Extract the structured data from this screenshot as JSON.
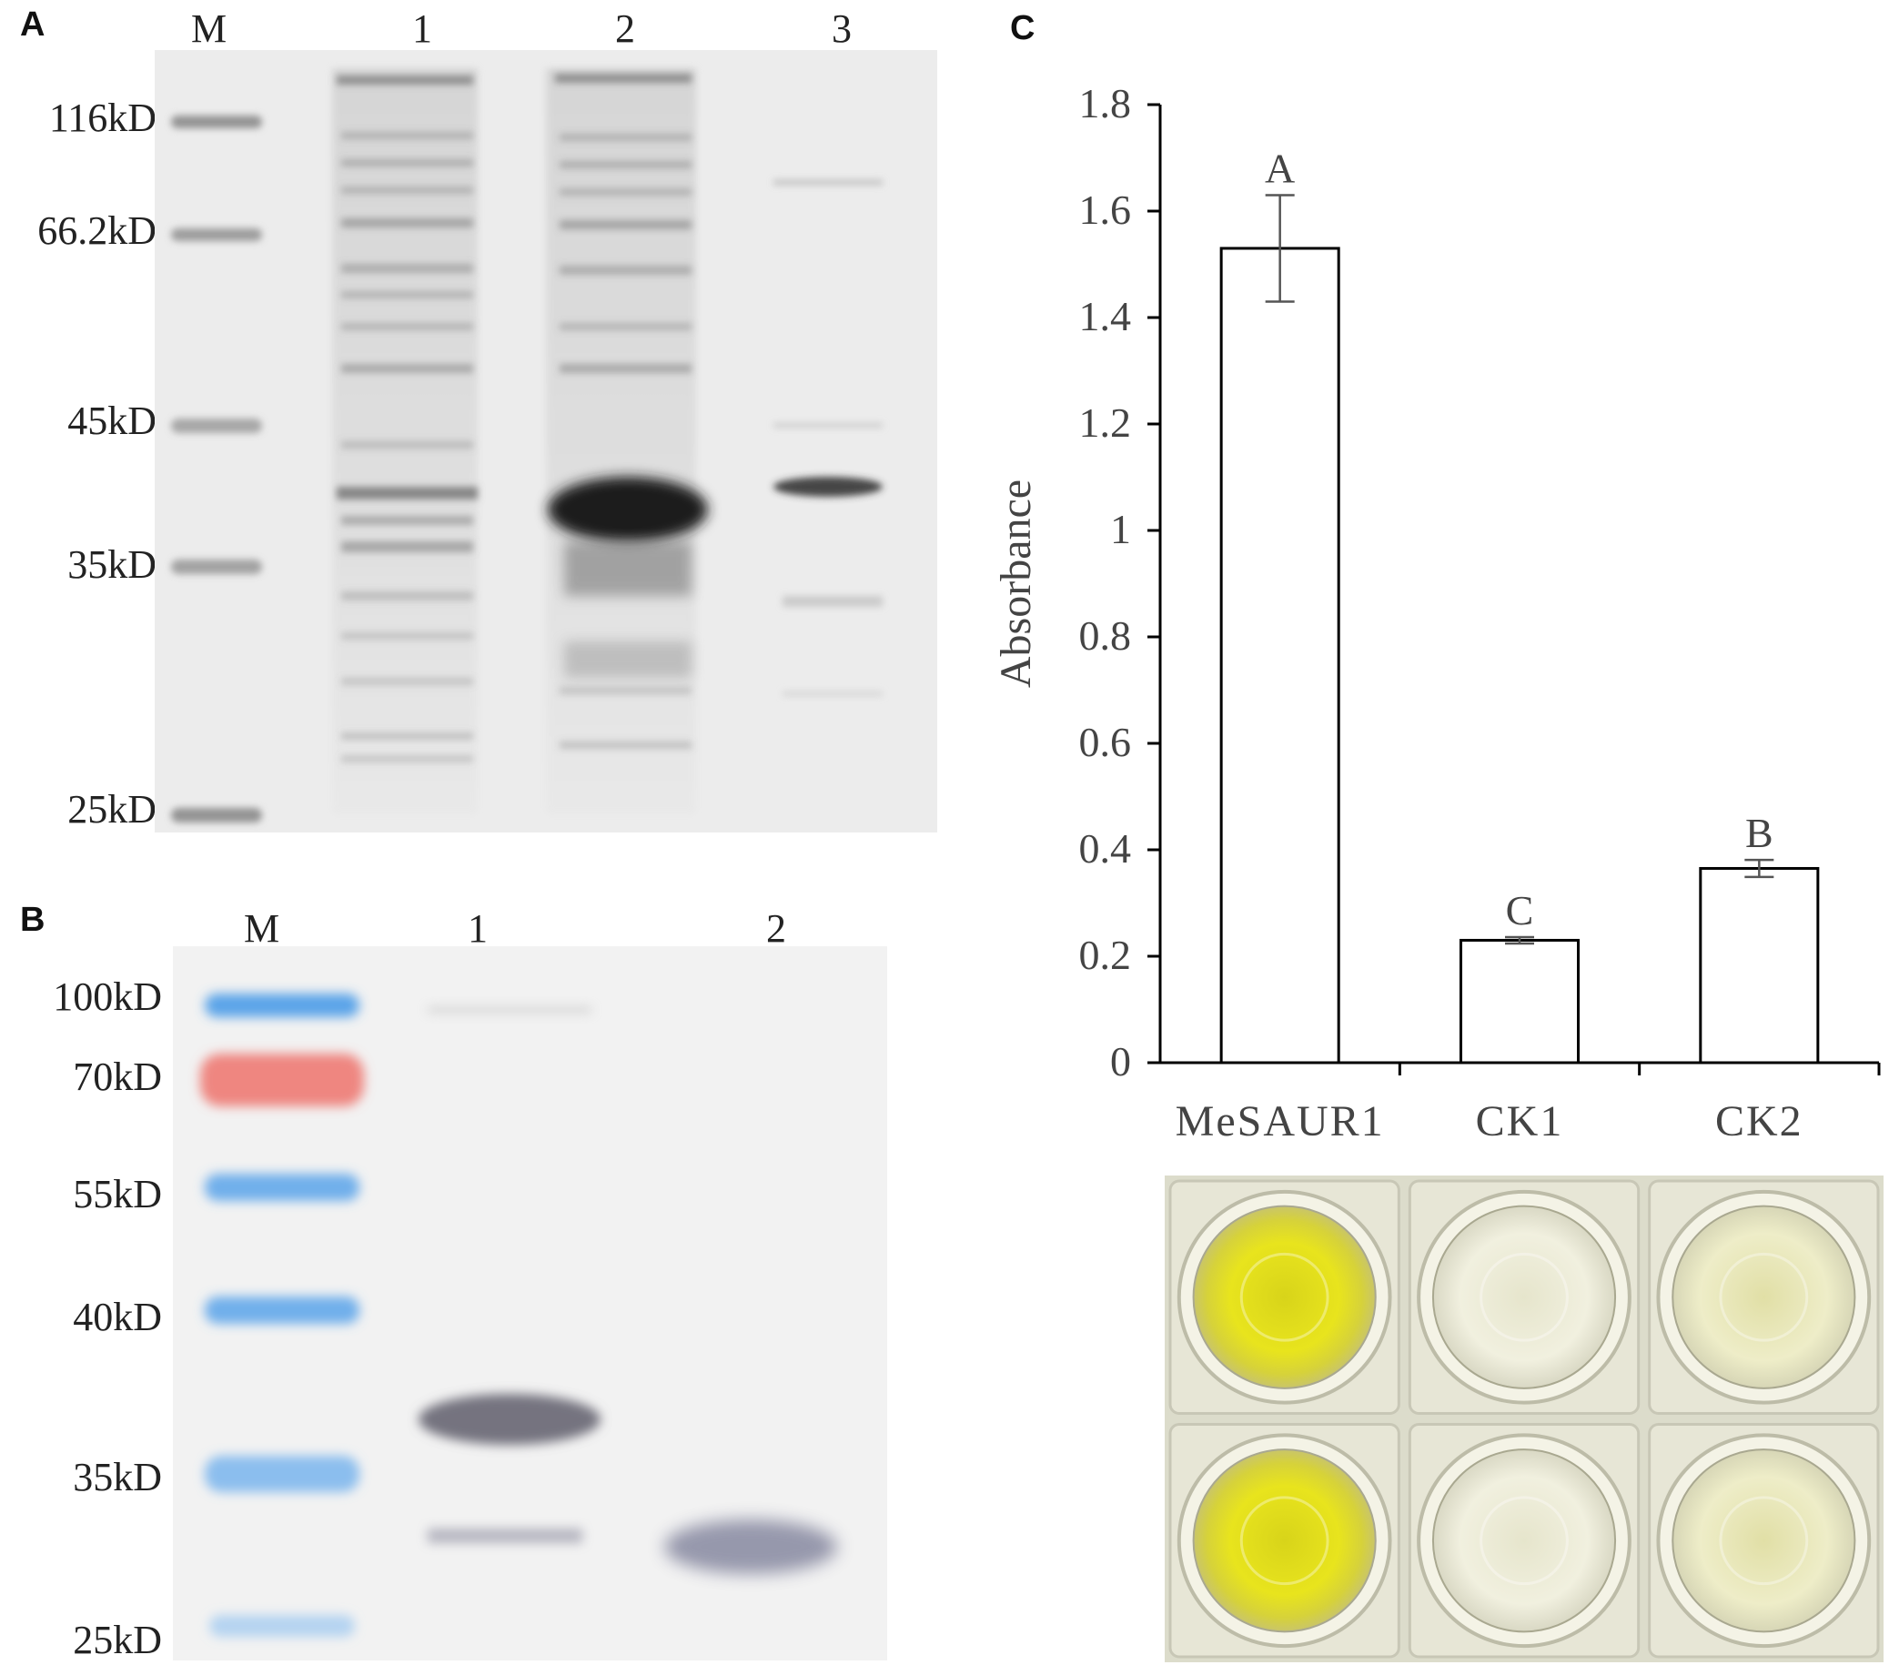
{
  "panels": {
    "a": {
      "letter": "A",
      "lanes": [
        "M",
        "1",
        "2",
        "3"
      ],
      "markers": [
        "116kD",
        "66.2kD",
        "45kD",
        "35kD",
        "25kD"
      ]
    },
    "b": {
      "letter": "B",
      "lanes": [
        "M",
        "1",
        "2"
      ],
      "markers": [
        "100kD",
        "70kD",
        "55kD",
        "40kD",
        "35kD",
        "25kD"
      ]
    },
    "c": {
      "letter": "C",
      "wells": {
        "columns": [
          "MeSAUR1",
          "CK1",
          "CK2"
        ],
        "rows": 2,
        "colors": {
          "strong_yellow": "#e6e21a",
          "pale": "#efeed6",
          "pale_yellow": "#ecebbe"
        }
      }
    }
  },
  "chart_data": {
    "type": "bar",
    "categories": [
      "MeSAUR1",
      "CK1",
      "CK2"
    ],
    "values": [
      1.53,
      0.23,
      0.365
    ],
    "errors": [
      0.1,
      0.006,
      0.016
    ],
    "significance": [
      "A",
      "C",
      "B"
    ],
    "ylabel": "Absorbance",
    "xlabel": "",
    "ylim": [
      0,
      1.8
    ],
    "yticks": [
      "0",
      "0.2",
      "0.4",
      "0.6",
      "0.8",
      "1",
      "1.2",
      "1.4",
      "1.6",
      "1.8"
    ],
    "grid": false,
    "colors": {
      "bar_fill": "#ffffff",
      "bar_stroke": "#000000",
      "tick_label": "#444444",
      "error_bar": "#555555"
    }
  }
}
